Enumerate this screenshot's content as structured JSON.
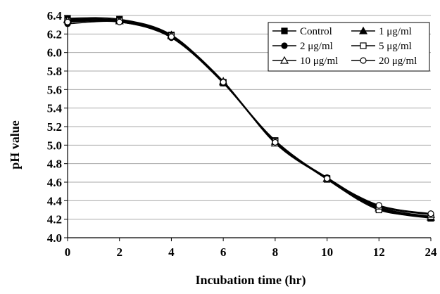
{
  "chart_data": {
    "type": "line",
    "title": "",
    "xlabel": "Incubation time (hr)",
    "ylabel": "pH value",
    "categories": [
      "0",
      "2",
      "4",
      "6",
      "8",
      "10",
      "12",
      "24"
    ],
    "ylim": [
      4.0,
      6.4
    ],
    "y_ticks": [
      "4.0",
      "4.2",
      "4.4",
      "4.6",
      "4.8",
      "5.0",
      "5.2",
      "5.4",
      "5.6",
      "5.8",
      "6.0",
      "6.2",
      "6.4"
    ],
    "grid": true,
    "legend_position": "top-right",
    "series": [
      {
        "name": "Control",
        "marker": "filled-square",
        "values": [
          6.37,
          6.36,
          6.19,
          5.67,
          5.05,
          4.64,
          4.31,
          4.21
        ]
      },
      {
        "name": "1 μg/ml",
        "marker": "filled-triangle",
        "values": [
          6.36,
          6.35,
          6.19,
          5.68,
          5.04,
          4.64,
          4.32,
          4.22
        ]
      },
      {
        "name": "2 μg/ml",
        "marker": "filled-circle",
        "values": [
          6.31,
          6.33,
          6.16,
          5.67,
          5.03,
          4.65,
          4.33,
          4.23
        ]
      },
      {
        "name": "5 μg/ml",
        "marker": "open-square",
        "values": [
          6.34,
          6.34,
          6.18,
          5.68,
          5.04,
          4.63,
          4.3,
          4.23
        ]
      },
      {
        "name": "10 μg/ml",
        "marker": "open-triangle",
        "values": [
          6.35,
          6.34,
          6.18,
          5.69,
          5.02,
          4.64,
          4.34,
          4.25
        ]
      },
      {
        "name": "20 μg/ml",
        "marker": "open-circle",
        "values": [
          6.33,
          6.33,
          6.17,
          5.68,
          5.03,
          4.64,
          4.35,
          4.26
        ]
      }
    ]
  }
}
